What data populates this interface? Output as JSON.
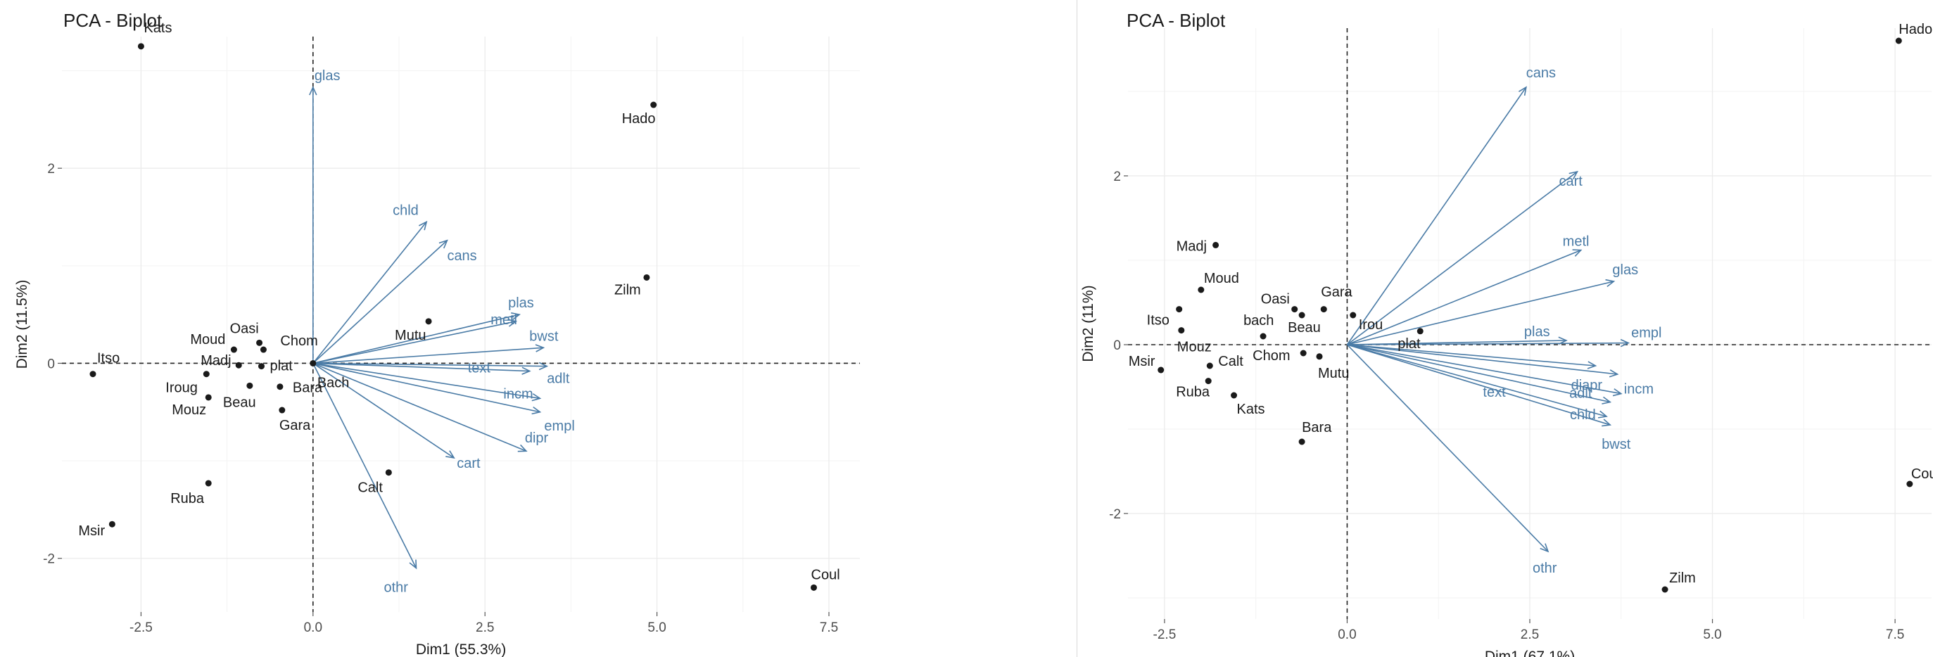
{
  "chart_data": [
    {
      "type": "scatter",
      "title": "PCA - Biplot",
      "xlabel": "Dim1 (55.3%)",
      "ylabel": "Dim2 (11.5%)",
      "xlim": [
        -3.65,
        7.95
      ],
      "ylim": [
        -2.55,
        3.35
      ],
      "xticks": [
        -2.5,
        0.0,
        2.5,
        5.0,
        7.5
      ],
      "xtick_labels": [
        "-2.5",
        "0.0",
        "2.5",
        "5.0",
        "7.5"
      ],
      "yticks": [
        -2,
        0,
        2
      ],
      "ytick_labels": [
        "-2",
        "0",
        "2"
      ],
      "grid": true,
      "colors": {
        "points": "#1a1a1a",
        "arrows": "#4a7ba6",
        "grid": "#ebebeb",
        "axis_text": "#4d4d4d"
      },
      "points": [
        {
          "label": "Kats",
          "x": -2.5,
          "y": 3.25
        },
        {
          "label": "Hado",
          "x": 4.95,
          "y": 2.65
        },
        {
          "label": "Zilm",
          "x": 4.85,
          "y": 0.88
        },
        {
          "label": "Mutu",
          "x": 1.68,
          "y": 0.43
        },
        {
          "label": "Oasi",
          "x": -0.78,
          "y": 0.21
        },
        {
          "label": "Chom",
          "x": -0.72,
          "y": 0.14
        },
        {
          "label": "Moud",
          "x": -1.15,
          "y": 0.14
        },
        {
          "label": "Madj",
          "x": -1.08,
          "y": -0.02
        },
        {
          "label": "plat",
          "x": -0.75,
          "y": -0.03
        },
        {
          "label": "Itso",
          "x": -3.2,
          "y": -0.11
        },
        {
          "label": "Iroug",
          "x": -1.55,
          "y": -0.11
        },
        {
          "label": "Bara",
          "x": -0.48,
          "y": -0.24
        },
        {
          "label": "Beau",
          "x": -0.92,
          "y": -0.23
        },
        {
          "label": "Mouz",
          "x": -1.52,
          "y": -0.35
        },
        {
          "label": "Gara",
          "x": -0.45,
          "y": -0.48
        },
        {
          "label": "Bach",
          "x": 0.0,
          "y": 0.0
        },
        {
          "label": "Calt",
          "x": 1.1,
          "y": -1.12
        },
        {
          "label": "Ruba",
          "x": -1.52,
          "y": -1.23
        },
        {
          "label": "Msir",
          "x": -2.92,
          "y": -1.65
        },
        {
          "label": "Coul",
          "x": 7.28,
          "y": -2.3
        }
      ],
      "arrows": [
        {
          "label": "glas",
          "x": 0.0,
          "y": 2.83
        },
        {
          "label": "chld",
          "x": 1.65,
          "y": 1.45
        },
        {
          "label": "cans",
          "x": 1.95,
          "y": 1.26
        },
        {
          "label": "plas",
          "x": 3.0,
          "y": 0.5
        },
        {
          "label": "metl",
          "x": 2.95,
          "y": 0.43
        },
        {
          "label": "bwst",
          "x": 3.35,
          "y": 0.16
        },
        {
          "label": "text",
          "x": 3.15,
          "y": -0.08
        },
        {
          "label": "adlt",
          "x": 3.4,
          "y": -0.03
        },
        {
          "label": "incm",
          "x": 3.3,
          "y": -0.36
        },
        {
          "label": "empl",
          "x": 3.3,
          "y": -0.5
        },
        {
          "label": "dipr",
          "x": 3.1,
          "y": -0.9
        },
        {
          "label": "cart",
          "x": 2.05,
          "y": -0.97
        },
        {
          "label": "othr",
          "x": 1.5,
          "y": -2.1
        }
      ]
    },
    {
      "type": "scatter",
      "title": "PCA - Biplot",
      "xlabel": "Dim1 (67.1%)",
      "ylabel": "Dim2 (11%)",
      "xlim": [
        -3.0,
        8.0
      ],
      "ylim": [
        -3.25,
        3.75
      ],
      "xticks": [
        -2.5,
        0.0,
        2.5,
        5.0,
        7.5
      ],
      "xtick_labels": [
        "-2.5",
        "0.0",
        "2.5",
        "5.0",
        "7.5"
      ],
      "yticks": [
        -2,
        0,
        2
      ],
      "ytick_labels": [
        "-2",
        "0",
        "2"
      ],
      "grid": true,
      "colors": {
        "points": "#1a1a1a",
        "arrows": "#4a7ba6",
        "grid": "#ebebeb",
        "axis_text": "#4d4d4d"
      },
      "points": [
        {
          "label": "Hado",
          "x": 7.55,
          "y": 3.6
        },
        {
          "label": "Madj",
          "x": -1.8,
          "y": 1.18
        },
        {
          "label": "Moud",
          "x": -2.0,
          "y": 0.65
        },
        {
          "label": "Oasi",
          "x": -0.72,
          "y": 0.42
        },
        {
          "label": "Gara",
          "x": -0.32,
          "y": 0.42
        },
        {
          "label": "Itso",
          "x": -2.3,
          "y": 0.42
        },
        {
          "label": "bach",
          "x": -1.15,
          "y": 0.1
        },
        {
          "label": "Beau",
          "x": -0.62,
          "y": 0.35
        },
        {
          "label": "Irou",
          "x": 0.08,
          "y": 0.35
        },
        {
          "label": "plat",
          "x": 1.0,
          "y": 0.16
        },
        {
          "label": "Mouz",
          "x": -2.27,
          "y": 0.17
        },
        {
          "label": "Chom",
          "x": -0.6,
          "y": -0.1
        },
        {
          "label": "Mutu",
          "x": -0.38,
          "y": -0.14
        },
        {
          "label": "Msir",
          "x": -2.55,
          "y": -0.3
        },
        {
          "label": "Calt",
          "x": -1.88,
          "y": -0.25
        },
        {
          "label": "Ruba",
          "x": -1.9,
          "y": -0.43
        },
        {
          "label": "Kats",
          "x": -1.55,
          "y": -0.6
        },
        {
          "label": "Bara",
          "x": -0.62,
          "y": -1.15
        },
        {
          "label": "Coul",
          "x": 7.7,
          "y": -1.65
        },
        {
          "label": "Zilm",
          "x": 4.35,
          "y": -2.9
        }
      ],
      "arrows": [
        {
          "label": "cans",
          "x": 2.45,
          "y": 3.05
        },
        {
          "label": "cart",
          "x": 3.15,
          "y": 2.05
        },
        {
          "label": "metl",
          "x": 3.2,
          "y": 1.12
        },
        {
          "label": "glas",
          "x": 3.65,
          "y": 0.75
        },
        {
          "label": "plas",
          "x": 3.0,
          "y": 0.05
        },
        {
          "label": "empl",
          "x": 3.85,
          "y": 0.02
        },
        {
          "label": "diapr",
          "x": 3.7,
          "y": -0.35
        },
        {
          "label": "incm",
          "x": 3.75,
          "y": -0.58
        },
        {
          "label": "adlt",
          "x": 3.6,
          "y": -0.68
        },
        {
          "label": "chld",
          "x": 3.55,
          "y": -0.85
        },
        {
          "label": "bwst",
          "x": 3.6,
          "y": -0.95
        },
        {
          "label": "text",
          "x": 3.4,
          "y": -0.25
        },
        {
          "label": "othr",
          "x": 2.75,
          "y": -2.45
        }
      ]
    }
  ]
}
